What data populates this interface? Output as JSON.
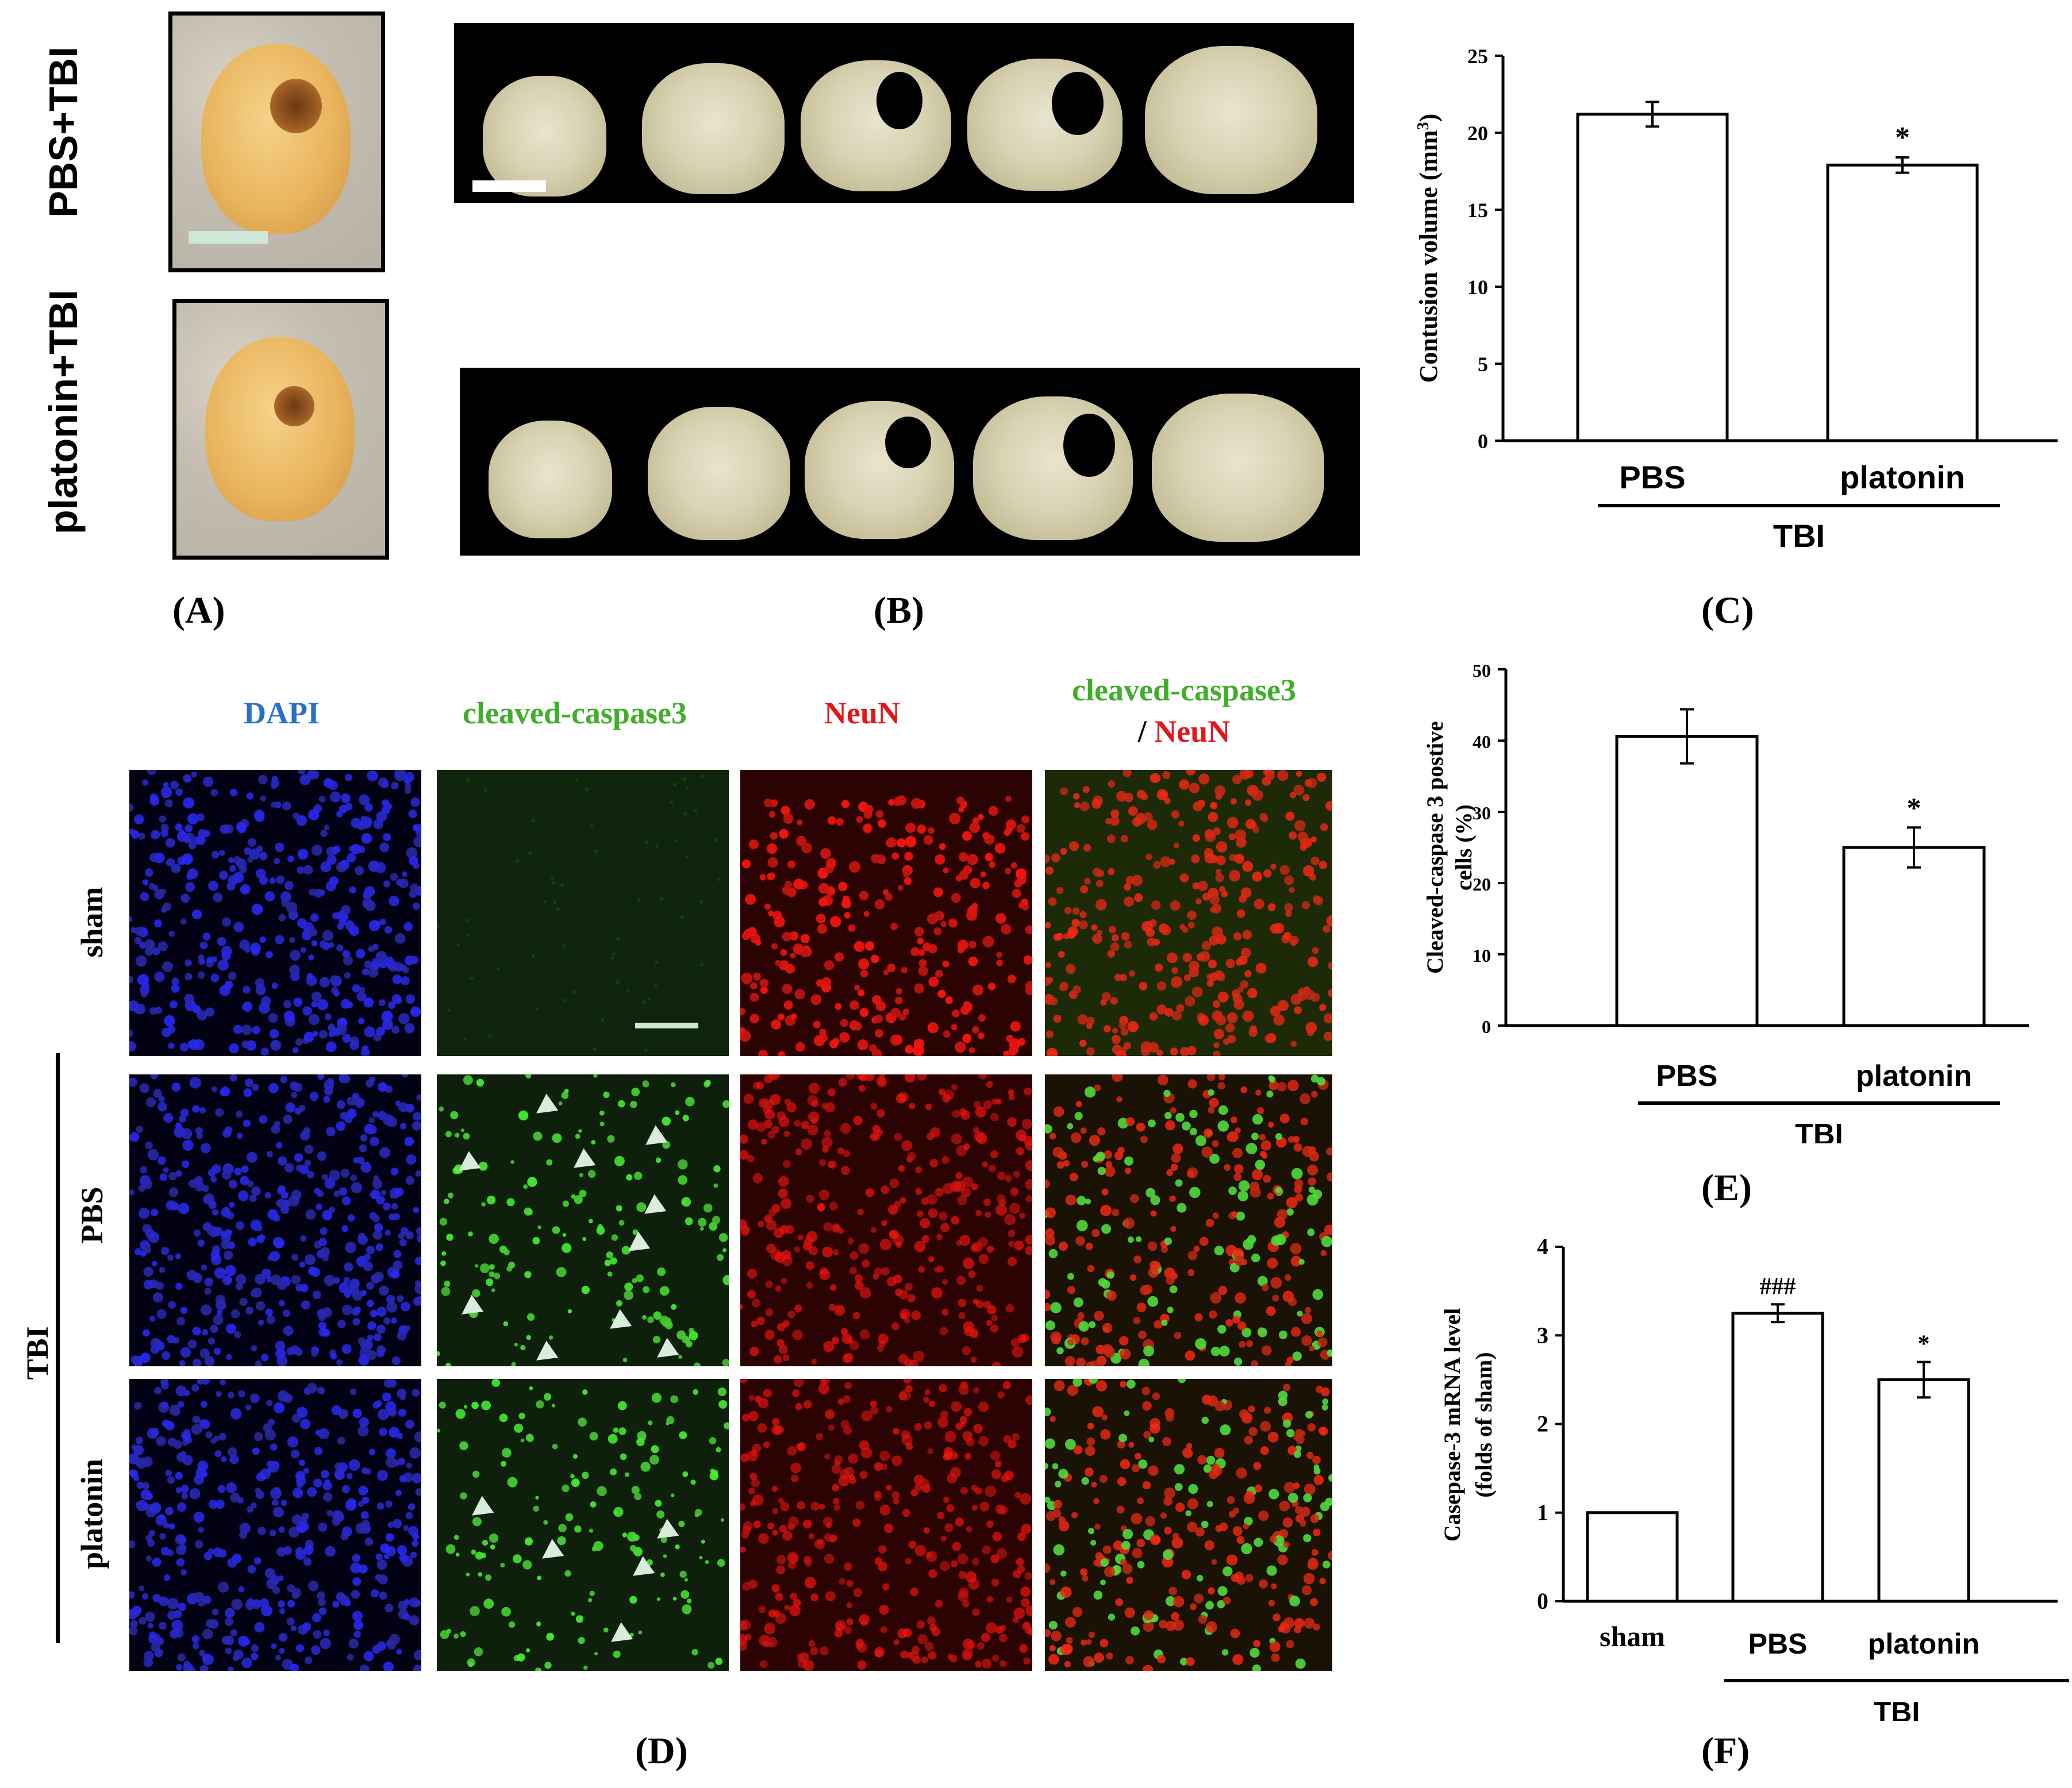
{
  "panelA": {
    "letter": "(A)",
    "row_labels": [
      "PBS+TBI",
      "platonin+TBI"
    ]
  },
  "panelB": {
    "letter": "(B)"
  },
  "panelC": {
    "letter": "(C)",
    "group_label": "TBI",
    "chart_data": {
      "type": "bar",
      "categories": [
        "PBS",
        "platonin"
      ],
      "values": [
        21.2,
        17.9
      ],
      "errors": [
        0.8,
        0.5
      ],
      "annotations": [
        "",
        "*"
      ],
      "ylabel": "Contusion volume (mm",
      "ylabel_sup": "3",
      "ylabel_end": ")",
      "ylim": [
        0,
        25
      ],
      "yticks": [
        "0",
        "5",
        "10",
        "15",
        "20",
        "25"
      ]
    }
  },
  "panelD": {
    "letter": "(D)",
    "col_headers": [
      "DAPI",
      "cleaved-caspase3",
      "NeuN"
    ],
    "merge_header_line1": "cleaved-caspase3",
    "merge_header_slash": "/ ",
    "merge_header_line2": "NeuN",
    "row_labels": [
      "sham",
      "PBS",
      "platonin"
    ],
    "group_label": "TBI",
    "colors": {
      "dapi": "#2a6fc9",
      "caspase": "#3fae2a",
      "neun": "#e0161b"
    }
  },
  "panelE": {
    "letter": "(E)",
    "group_label": "TBI",
    "chart_data": {
      "type": "bar",
      "categories": [
        "PBS",
        "platonin"
      ],
      "values": [
        40.6,
        25.0
      ],
      "errors": [
        3.8,
        2.8
      ],
      "annotations": [
        "",
        "*"
      ],
      "ylabel_line1": "Cleaved-caspase 3 postive",
      "ylabel_line2": "cells (%)",
      "ylim": [
        0,
        50
      ],
      "yticks": [
        "0",
        "10",
        "20",
        "30",
        "40",
        "50"
      ]
    }
  },
  "panelF": {
    "letter": "(F)",
    "group_label": "TBI",
    "chart_data": {
      "type": "bar",
      "categories": [
        "sham",
        "PBS",
        "platonin"
      ],
      "values": [
        1.0,
        3.25,
        2.5
      ],
      "errors": [
        0,
        0.1,
        0.2
      ],
      "annotations": [
        "",
        "###",
        "*"
      ],
      "ylabel_line1": "Casepase-3 mRNA level",
      "ylabel_line2": "(folds of sham)",
      "ylim": [
        0,
        4
      ],
      "yticks": [
        "0",
        "1",
        "2",
        "3",
        "4"
      ]
    }
  }
}
